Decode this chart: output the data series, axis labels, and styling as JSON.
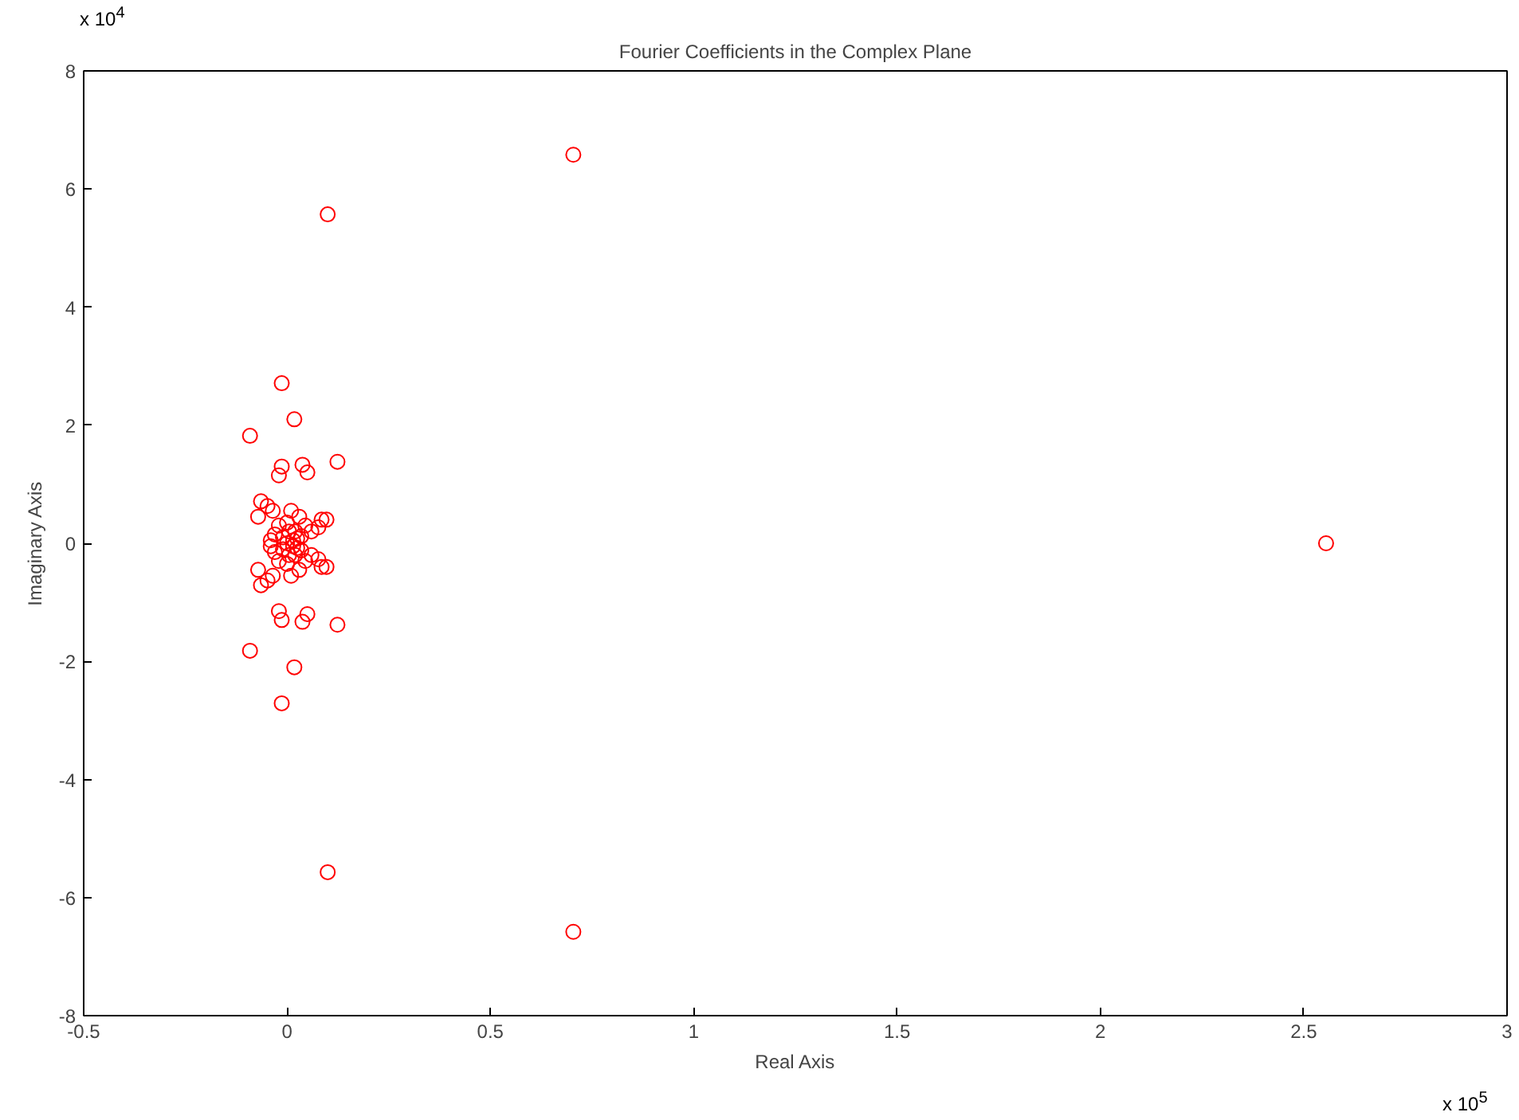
{
  "chart_data": {
    "type": "scatter",
    "title": "Fourier Coefficients in the Complex Plane",
    "xlabel": "Real Axis",
    "ylabel": "Imaginary Axis",
    "annotations": [
      "x 10$^{4}$",
      "x 10$^{5}$"
    ],
    "xlim": [
      -0.5,
      3
    ],
    "xticks": [
      -0.5,
      0,
      0.5,
      1,
      1.5,
      2,
      2.5,
      3
    ],
    "ylim": [
      -8,
      8
    ],
    "yticks": [
      -8,
      -6,
      -4,
      -2,
      0,
      2,
      4,
      6,
      8
    ],
    "grid": false,
    "marker": "circle",
    "series": [
      {
        "color": "#ff0000",
        "x": [
          2.555,
          0.704,
          0.704,
          0.1,
          0.1,
          -0.013,
          -0.013,
          0.018,
          0.018,
          -0.091,
          -0.091,
          0.124,
          0.124,
          0.038,
          0.038,
          0.05,
          0.05,
          -0.013,
          -0.013,
          -0.02,
          -0.02,
          -0.064,
          -0.064,
          -0.048,
          -0.048,
          -0.071,
          -0.071,
          0.097,
          0.097,
          0.077,
          0.077,
          0.085,
          0.085,
          -0.035,
          -0.035,
          -0.02,
          -0.02,
          0.01,
          0.01,
          0.03,
          0.03,
          0.045,
          0.045,
          0.06,
          0.06,
          -0.03,
          -0.03,
          0.0,
          0.0,
          0.02,
          0.02,
          -0.01,
          -0.01,
          0.015,
          0.015,
          0.035,
          0.035,
          -0.04,
          -0.04,
          0.005,
          0.005,
          0.025,
          0.025,
          0.0
        ],
        "values": [
          0,
          6.58,
          -6.58,
          5.57,
          -5.57,
          2.71,
          -2.71,
          2.1,
          -2.1,
          1.82,
          -1.82,
          1.38,
          -1.38,
          1.33,
          -1.33,
          1.2,
          -1.2,
          1.3,
          -1.3,
          1.15,
          -1.15,
          0.71,
          -0.71,
          0.63,
          -0.63,
          0.45,
          -0.45,
          0.4,
          -0.4,
          0.27,
          -0.27,
          0.4,
          -0.4,
          0.55,
          -0.55,
          0.3,
          -0.3,
          0.55,
          -0.55,
          0.45,
          -0.45,
          0.3,
          -0.3,
          0.2,
          -0.2,
          0.15,
          -0.15,
          0.35,
          -0.35,
          0.2,
          -0.2,
          0.1,
          -0.1,
          0.05,
          -0.05,
          0.12,
          -0.12,
          0.05,
          -0.05,
          0.2,
          -0.2,
          0.08,
          -0.08,
          0
        ]
      }
    ]
  }
}
